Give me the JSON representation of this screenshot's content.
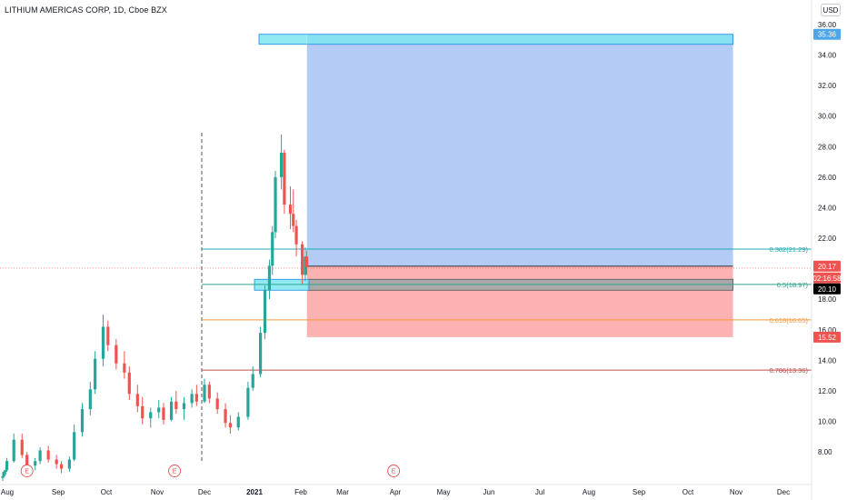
{
  "header": {
    "title": "LITHIUM AMERICAS CORP, 1D, Cboe BZX",
    "currency": "USD"
  },
  "colors": {
    "up": "#26a69a",
    "down": "#ef5350",
    "target_zone": "#b3cbf5",
    "stop_zone": "#fdb2b2",
    "fib_0382": "#22a8b8",
    "fib_05": "#2fa58e",
    "fib_0618": "#f59a3c",
    "fib_0786": "#c24d4d",
    "target_badge": "#4ea6e8",
    "stop_badge": "#ef5350",
    "price_badge": "#000000"
  },
  "chart_data": {
    "type": "candlestick",
    "symbol": "LITHIUM AMERICAS CORP",
    "interval": "1D",
    "exchange": "Cboe BZX",
    "y_ticks": [
      "36.00",
      "34.00",
      "32.00",
      "30.00",
      "28.00",
      "26.00",
      "24.00",
      "22.00",
      "20.00",
      "18.00",
      "16.00",
      "14.00",
      "12.00",
      "10.00",
      "8.00"
    ],
    "x_ticks": [
      "Aug",
      "Sep",
      "Oct",
      "Nov",
      "Dec",
      "2021",
      "Feb",
      "Mar",
      "Apr",
      "May",
      "Jun",
      "Jul",
      "Aug",
      "Sep",
      "Oct",
      "Nov",
      "Dec"
    ],
    "earnings_marker": "E",
    "earnings_dates": [
      "2020-08-13",
      "2020-11-12",
      "2021-03-31"
    ],
    "fib_levels": [
      {
        "label": "0.382(21.29)",
        "ratio": 0.382,
        "price": 21.29,
        "color_key": "fib_0382"
      },
      {
        "label": "0.5(18.97)",
        "ratio": 0.5,
        "price": 18.97,
        "color_key": "fib_05"
      },
      {
        "label": "0.618(16.65)",
        "ratio": 0.618,
        "price": 16.65,
        "color_key": "fib_0618"
      },
      {
        "label": "0.786(13.36)",
        "ratio": 0.786,
        "price": 13.36,
        "color_key": "fib_0786"
      }
    ],
    "position": {
      "entry": 20.17,
      "target": 35.36,
      "stop": 15.52,
      "current": 20.1,
      "countdown": "02:16:58",
      "start": "2021-02-05",
      "end": "2021-10-30"
    },
    "price_labels": {
      "target": "35.36",
      "entry": "20.17",
      "countdown": "02:16:58",
      "current": "20.10",
      "stop": "15.52"
    },
    "ohlc": [
      [
        "2020-07-20",
        6.3,
        6.6,
        6.1,
        6.4
      ],
      [
        "2020-07-23",
        6.4,
        6.8,
        6.3,
        6.7
      ],
      [
        "2020-07-28",
        6.7,
        7.0,
        6.5,
        6.8
      ],
      [
        "2020-07-31",
        6.8,
        7.6,
        6.7,
        7.4
      ],
      [
        "2020-08-05",
        7.4,
        9.2,
        7.3,
        8.8
      ],
      [
        "2020-08-10",
        8.8,
        9.2,
        7.6,
        7.8
      ],
      [
        "2020-08-13",
        7.8,
        8.0,
        6.9,
        7.1
      ],
      [
        "2020-08-18",
        7.1,
        7.6,
        6.8,
        7.4
      ],
      [
        "2020-08-21",
        7.4,
        8.3,
        7.2,
        8.1
      ],
      [
        "2020-08-26",
        8.1,
        8.4,
        7.3,
        7.5
      ],
      [
        "2020-08-31",
        7.5,
        7.8,
        6.9,
        7.2
      ],
      [
        "2020-09-03",
        7.2,
        7.4,
        6.6,
        6.9
      ],
      [
        "2020-09-08",
        6.9,
        7.7,
        6.7,
        7.5
      ],
      [
        "2020-09-11",
        7.5,
        9.8,
        7.4,
        9.3
      ],
      [
        "2020-09-16",
        9.3,
        11.2,
        9.0,
        10.8
      ],
      [
        "2020-09-21",
        10.8,
        12.6,
        10.4,
        12.1
      ],
      [
        "2020-09-24",
        12.1,
        14.6,
        11.8,
        14.1
      ],
      [
        "2020-09-29",
        14.1,
        17.0,
        13.6,
        16.2
      ],
      [
        "2020-10-02",
        16.2,
        16.6,
        14.6,
        15.0
      ],
      [
        "2020-10-07",
        15.0,
        15.4,
        13.4,
        13.8
      ],
      [
        "2020-10-12",
        13.8,
        14.6,
        12.8,
        13.2
      ],
      [
        "2020-10-15",
        13.2,
        13.6,
        11.4,
        11.8
      ],
      [
        "2020-10-20",
        11.8,
        12.4,
        10.6,
        11.0
      ],
      [
        "2020-10-23",
        11.0,
        11.6,
        9.8,
        10.2
      ],
      [
        "2020-10-28",
        10.2,
        10.9,
        9.6,
        10.6
      ],
      [
        "2020-11-02",
        10.6,
        11.4,
        10.2,
        10.9
      ],
      [
        "2020-11-05",
        10.9,
        11.2,
        9.8,
        10.1
      ],
      [
        "2020-11-10",
        10.1,
        11.6,
        10.0,
        11.3
      ],
      [
        "2020-11-13",
        11.3,
        12.0,
        10.5,
        10.8
      ],
      [
        "2020-11-18",
        10.8,
        11.6,
        10.1,
        11.2
      ],
      [
        "2020-11-23",
        11.2,
        12.1,
        10.9,
        11.8
      ],
      [
        "2020-11-26",
        11.8,
        12.4,
        11.0,
        11.3
      ],
      [
        "2020-12-01",
        11.3,
        12.8,
        11.2,
        12.4
      ],
      [
        "2020-12-04",
        12.4,
        12.6,
        11.2,
        11.5
      ],
      [
        "2020-12-09",
        11.5,
        11.9,
        10.5,
        10.8
      ],
      [
        "2020-12-14",
        10.8,
        11.2,
        9.6,
        9.9
      ],
      [
        "2020-12-17",
        9.9,
        10.4,
        9.2,
        9.6
      ],
      [
        "2020-12-22",
        9.6,
        10.6,
        9.4,
        10.3
      ],
      [
        "2020-12-28",
        10.3,
        12.6,
        10.1,
        12.2
      ],
      [
        "2020-12-31",
        12.2,
        13.6,
        12.0,
        13.1
      ],
      [
        "2021-01-05",
        13.1,
        16.2,
        12.9,
        15.8
      ],
      [
        "2021-01-08",
        15.8,
        18.9,
        15.4,
        18.6
      ],
      [
        "2021-01-11",
        18.6,
        20.6,
        18.0,
        20.2
      ],
      [
        "2021-01-13",
        20.2,
        22.8,
        19.6,
        22.4
      ],
      [
        "2021-01-15",
        22.4,
        26.4,
        22.0,
        26.0
      ],
      [
        "2021-01-19",
        26.0,
        28.8,
        25.2,
        27.6
      ],
      [
        "2021-01-21",
        27.6,
        27.8,
        23.6,
        24.2
      ],
      [
        "2021-01-25",
        24.2,
        25.4,
        22.6,
        23.6
      ],
      [
        "2021-01-27",
        23.6,
        25.2,
        22.4,
        22.8
      ],
      [
        "2021-01-29",
        22.8,
        23.2,
        20.8,
        21.6
      ],
      [
        "2021-02-02",
        21.6,
        21.8,
        19.0,
        19.6
      ],
      [
        "2021-02-04",
        19.6,
        21.4,
        19.2,
        20.8
      ],
      [
        "2021-02-05",
        20.8,
        21.2,
        19.6,
        20.1
      ]
    ]
  }
}
